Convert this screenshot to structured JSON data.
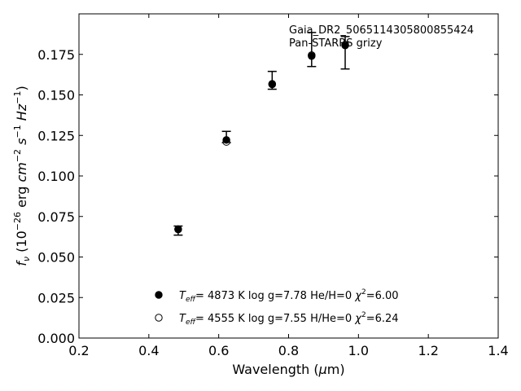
{
  "chart_data": {
    "type": "scatter",
    "xlabel": "Wavelength (µm)",
    "ylabel": "f_ν (10^-26 erg cm^-2 s^-1 Hz^-1)",
    "xlim": [
      0.2,
      1.4
    ],
    "ylim": [
      0.0,
      0.2
    ],
    "xticks": [
      0.2,
      0.4,
      0.6,
      0.8,
      1.0,
      1.2,
      1.4
    ],
    "xtick_labels": [
      "0.2",
      "0.4",
      "0.6",
      "0.8",
      "1.0",
      "1.2",
      "1.4"
    ],
    "yticks": [
      0.0,
      0.025,
      0.05,
      0.075,
      0.1,
      0.125,
      0.15,
      0.175
    ],
    "ytick_labels": [
      "0.000",
      "0.025",
      "0.050",
      "0.075",
      "0.100",
      "0.125",
      "0.150",
      "0.175"
    ],
    "grid": false,
    "annotations": [
      "Gaia_DR2_5065114305800855424",
      "Pan-STARRS grizy"
    ],
    "observed": {
      "x": [
        0.484,
        0.622,
        0.753,
        0.866,
        0.962
      ],
      "y": [
        0.0663,
        0.124,
        0.159,
        0.178,
        0.176
      ],
      "yerr": [
        0.0028,
        0.0035,
        0.0055,
        0.0105,
        0.01
      ]
    },
    "series": [
      {
        "marker": "filled-circle",
        "legend": {
          "teff": "4873 K",
          "logg": "log g=7.78",
          "comp": "He/H=0",
          "chi2": "=6.00"
        },
        "x": [
          0.484,
          0.622,
          0.753,
          0.866,
          0.962
        ],
        "y": [
          0.0672,
          0.1222,
          0.1568,
          0.174,
          0.1805
        ]
      },
      {
        "marker": "open-circle",
        "legend": {
          "teff": "4555 K",
          "logg": "log g=7.55",
          "comp": "H/He=0",
          "chi2": "=6.24"
        },
        "x": [
          0.484,
          0.622,
          0.753,
          0.866,
          0.962
        ],
        "y": [
          0.067,
          0.121,
          0.1565,
          0.1745,
          0.181
        ]
      }
    ]
  }
}
